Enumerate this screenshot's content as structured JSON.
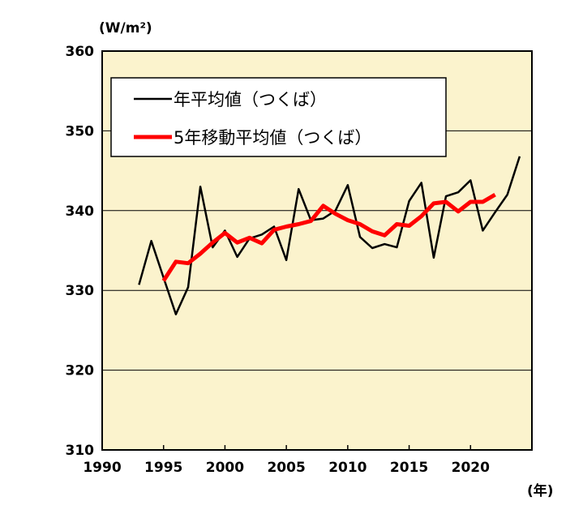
{
  "chart_data": {
    "type": "line",
    "y_unit": "(W/m²)",
    "x_unit": "(年)",
    "xlim": [
      1990,
      2025
    ],
    "ylim": [
      310,
      360
    ],
    "x_ticks": [
      1990,
      1995,
      2000,
      2005,
      2010,
      2015,
      2020
    ],
    "y_ticks": [
      310,
      320,
      330,
      340,
      350,
      360
    ],
    "grid": "horizontal",
    "legend_position": "top-left",
    "series": [
      {
        "name": "年平均値（つくば）",
        "color": "#000000",
        "x": [
          1993,
          1994,
          1995,
          1996,
          1997,
          1998,
          1999,
          2000,
          2001,
          2002,
          2003,
          2004,
          2005,
          2006,
          2007,
          2008,
          2009,
          2010,
          2011,
          2012,
          2013,
          2014,
          2015,
          2016,
          2017,
          2018,
          2019,
          2020,
          2021,
          2022,
          2023,
          2024
        ],
        "values": [
          330.7,
          336.2,
          331.6,
          327.0,
          330.4,
          343.0,
          335.4,
          337.5,
          334.2,
          336.5,
          337.0,
          338.0,
          333.8,
          342.7,
          338.8,
          339.0,
          340.0,
          343.2,
          336.7,
          335.3,
          335.8,
          335.4,
          341.2,
          343.5,
          334.1,
          341.8,
          342.3,
          343.8,
          337.5,
          339.8,
          342.0,
          346.8
        ]
      },
      {
        "name": "5年移動平均値（つくば）",
        "color": "#ff0000",
        "x": [
          1995,
          1996,
          1997,
          1998,
          1999,
          2000,
          2001,
          2002,
          2003,
          2004,
          2005,
          2006,
          2007,
          2008,
          2009,
          2010,
          2011,
          2012,
          2013,
          2014,
          2015,
          2016,
          2017,
          2018,
          2019,
          2020,
          2021,
          2022
        ],
        "values": [
          331.2,
          333.6,
          333.4,
          334.6,
          336.0,
          337.2,
          336.0,
          336.6,
          335.9,
          337.6,
          338.0,
          338.3,
          338.7,
          340.6,
          339.6,
          338.8,
          338.3,
          337.4,
          336.9,
          338.3,
          338.1,
          339.3,
          340.9,
          341.1,
          339.9,
          341.1,
          341.1,
          342.0
        ]
      }
    ]
  }
}
